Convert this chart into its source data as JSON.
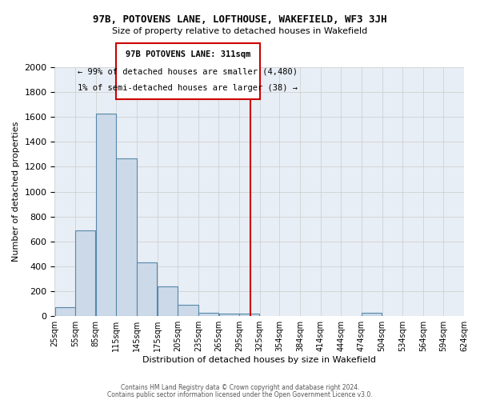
{
  "title": "97B, POTOVENS LANE, LOFTHOUSE, WAKEFIELD, WF3 3JH",
  "subtitle": "Size of property relative to detached houses in Wakefield",
  "xlabel": "Distribution of detached houses by size in Wakefield",
  "ylabel": "Number of detached properties",
  "annotation_line1": "97B POTOVENS LANE: 311sqm",
  "annotation_line2": "← 99% of detached houses are smaller (4,480)",
  "annotation_line3": "1% of semi-detached houses are larger (38) →",
  "bar_color": "#ccd9e8",
  "bar_edge_color": "#5588aa",
  "bar_left_edges": [
    25,
    55,
    85,
    115,
    145,
    175,
    205,
    235,
    265,
    295,
    325,
    354,
    384,
    414,
    444,
    474,
    504,
    534,
    564,
    594
  ],
  "bar_widths": [
    30,
    30,
    30,
    30,
    30,
    30,
    30,
    30,
    30,
    30,
    29,
    30,
    30,
    30,
    30,
    30,
    30,
    30,
    30,
    30
  ],
  "bar_heights": [
    70,
    690,
    1630,
    1270,
    430,
    240,
    90,
    30,
    20,
    20,
    0,
    0,
    0,
    0,
    0,
    30,
    0,
    0,
    0,
    0
  ],
  "x_tick_labels": [
    "25sqm",
    "55sqm",
    "85sqm",
    "115sqm",
    "145sqm",
    "175sqm",
    "205sqm",
    "235sqm",
    "265sqm",
    "295sqm",
    "325sqm",
    "354sqm",
    "384sqm",
    "414sqm",
    "444sqm",
    "474sqm",
    "504sqm",
    "534sqm",
    "564sqm",
    "594sqm",
    "624sqm"
  ],
  "ylim": [
    0,
    2000
  ],
  "yticks": [
    0,
    200,
    400,
    600,
    800,
    1000,
    1200,
    1400,
    1600,
    1800,
    2000
  ],
  "red_line_x": 311,
  "grid_color": "#cccccc",
  "bg_color": "#e8eef5",
  "annotation_box_color": "#ffffff",
  "annotation_box_edge": "#cc0000",
  "footer_line1": "Contains HM Land Registry data © Crown copyright and database right 2024.",
  "footer_line2": "Contains public sector information licensed under the Open Government Licence v3.0."
}
